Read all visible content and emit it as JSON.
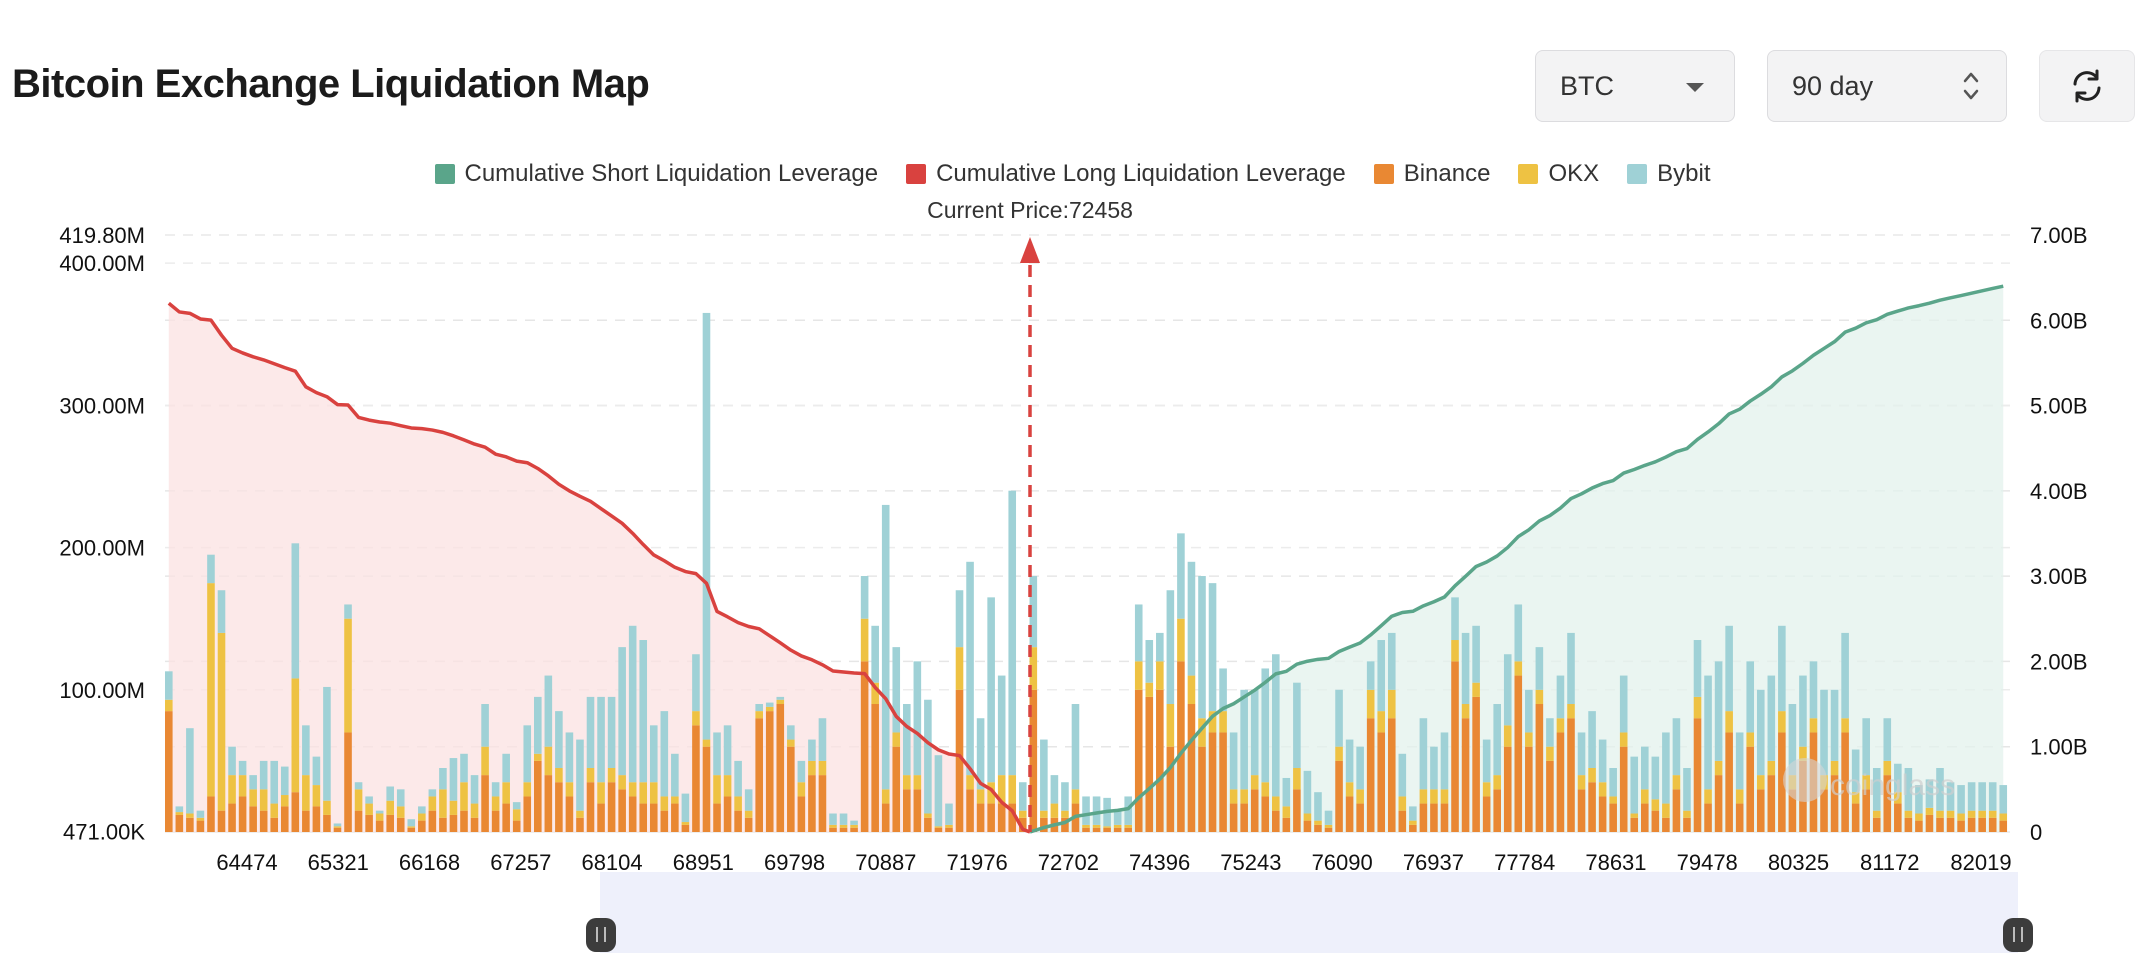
{
  "header": {
    "title": "Bitcoin Exchange Liquidation Map"
  },
  "controls": {
    "coin": {
      "value": "BTC",
      "icon": "chevron-down-icon"
    },
    "range": {
      "value": "90 day",
      "icon": "updown-icon"
    },
    "refresh": {
      "icon": "refresh-icon"
    }
  },
  "colors": {
    "short": "#5aa58a",
    "long": "#d9423f",
    "binance": "#e98833",
    "okx": "#eec243",
    "bybit": "#9fd1d6",
    "short_fill": "#e3f2ec",
    "long_fill": "#fbe2e1"
  },
  "chart_data": {
    "type": "bar",
    "title": "Bitcoin Exchange Liquidation Map",
    "current_price_label": "Current Price:72458",
    "current_price": 72458,
    "legend": [
      {
        "name": "Cumulative Short Liquidation Leverage",
        "color": "#5aa58a"
      },
      {
        "name": "Cumulative Long Liquidation Leverage",
        "color": "#d9423f"
      },
      {
        "name": "Binance",
        "color": "#e98833"
      },
      {
        "name": "OKX",
        "color": "#eec243"
      },
      {
        "name": "Bybit",
        "color": "#9fd1d6"
      }
    ],
    "x_ticks": [
      "64474",
      "65321",
      "66168",
      "67257",
      "68104",
      "68951",
      "69798",
      "70887",
      "71976",
      "72702",
      "74396",
      "75243",
      "76090",
      "76937",
      "77784",
      "78631",
      "79478",
      "80325",
      "81172",
      "82019"
    ],
    "left_axis": {
      "labels": [
        "419.80M",
        "400.00M",
        "300.00M",
        "200.00M",
        "100.00M",
        "471.00K"
      ],
      "values": [
        419.8,
        400,
        300,
        200,
        100,
        0.471
      ],
      "unit": "M",
      "range": [
        0.471,
        419.8
      ]
    },
    "right_axis": {
      "labels": [
        "7.00B",
        "6.00B",
        "5.00B",
        "4.00B",
        "3.00B",
        "2.00B",
        "1.00B",
        "0"
      ],
      "values": [
        7,
        6,
        5,
        4,
        3,
        2,
        1,
        0
      ],
      "unit": "B",
      "range": [
        0,
        7
      ]
    },
    "bars_binance": [
      85,
      12,
      10,
      8,
      25,
      15,
      20,
      25,
      18,
      15,
      10,
      18,
      28,
      15,
      18,
      12,
      3,
      70,
      15,
      12,
      8,
      12,
      10,
      3,
      8,
      15,
      10,
      12,
      15,
      10,
      40,
      15,
      20,
      8,
      25,
      50,
      40,
      35,
      25,
      10,
      35,
      20,
      35,
      30,
      25,
      20,
      20,
      15,
      20,
      5,
      75,
      60,
      20,
      25,
      15,
      10,
      80,
      85,
      90,
      60,
      25,
      40,
      40,
      3,
      3,
      3,
      120,
      90,
      20,
      60,
      30,
      30,
      10,
      3,
      3,
      100,
      30,
      20,
      20,
      20,
      20,
      10,
      100,
      10,
      10,
      10,
      20,
      3,
      3,
      3,
      3,
      3,
      100,
      95,
      100,
      60,
      120,
      90,
      60,
      70,
      70,
      20,
      20,
      30,
      25,
      15,
      10,
      30,
      8,
      5,
      3,
      50,
      25,
      20,
      80,
      70,
      80,
      15,
      5,
      20,
      20,
      20,
      120,
      80,
      95,
      25,
      30,
      60,
      110,
      60,
      90,
      50,
      70,
      80,
      30,
      35,
      25,
      20,
      60,
      10,
      20,
      15,
      10,
      30,
      10,
      80,
      20,
      40,
      70,
      20,
      60,
      30,
      40,
      70,
      30,
      50,
      70,
      30,
      40,
      70,
      20,
      30,
      10,
      40,
      20,
      10,
      8,
      12,
      10,
      10,
      8,
      10,
      10,
      10,
      8
    ],
    "bars_okx": [
      8,
      2,
      3,
      2,
      150,
      125,
      20,
      15,
      12,
      15,
      10,
      8,
      80,
      25,
      15,
      10,
      1,
      80,
      15,
      8,
      5,
      10,
      8,
      1,
      5,
      10,
      20,
      10,
      20,
      10,
      20,
      10,
      15,
      8,
      10,
      5,
      20,
      10,
      10,
      5,
      10,
      15,
      10,
      10,
      10,
      15,
      15,
      10,
      5,
      2,
      10,
      5,
      20,
      15,
      10,
      5,
      5,
      3,
      3,
      5,
      10,
      10,
      10,
      2,
      2,
      2,
      30,
      15,
      10,
      10,
      10,
      10,
      3,
      1,
      2,
      30,
      10,
      10,
      15,
      20,
      20,
      5,
      30,
      5,
      10,
      5,
      10,
      2,
      2,
      1,
      2,
      2,
      20,
      10,
      20,
      30,
      30,
      20,
      20,
      15,
      15,
      10,
      10,
      10,
      10,
      10,
      8,
      15,
      5,
      3,
      2,
      10,
      10,
      10,
      20,
      15,
      20,
      10,
      3,
      10,
      10,
      10,
      15,
      10,
      10,
      10,
      10,
      15,
      10,
      10,
      10,
      10,
      10,
      10,
      10,
      10,
      10,
      5,
      10,
      3,
      10,
      8,
      10,
      10,
      5,
      15,
      10,
      10,
      15,
      10,
      10,
      10,
      10,
      15,
      10,
      10,
      10,
      10,
      10,
      10,
      8,
      10,
      5,
      10,
      8,
      5,
      5,
      5,
      5,
      5,
      5,
      5,
      5,
      5,
      5
    ],
    "bars_bybit": [
      20,
      4,
      60,
      5,
      20,
      30,
      20,
      10,
      10,
      20,
      30,
      20,
      95,
      35,
      20,
      80,
      2,
      10,
      5,
      5,
      2,
      10,
      12,
      5,
      5,
      5,
      15,
      30,
      20,
      20,
      30,
      10,
      20,
      5,
      40,
      40,
      50,
      40,
      35,
      50,
      50,
      60,
      50,
      90,
      110,
      100,
      40,
      60,
      30,
      20,
      40,
      300,
      30,
      35,
      25,
      15,
      5,
      3,
      2,
      10,
      15,
      15,
      30,
      8,
      8,
      3,
      30,
      40,
      200,
      60,
      50,
      80,
      80,
      50,
      15,
      40,
      150,
      50,
      130,
      70,
      200,
      20,
      50,
      50,
      20,
      20,
      60,
      20,
      20,
      20,
      10,
      20,
      40,
      30,
      20,
      80,
      60,
      80,
      100,
      90,
      30,
      40,
      70,
      60,
      80,
      100,
      20,
      60,
      30,
      20,
      10,
      40,
      30,
      30,
      20,
      50,
      40,
      30,
      10,
      50,
      30,
      40,
      30,
      50,
      40,
      30,
      50,
      50,
      40,
      30,
      30,
      20,
      30,
      50,
      30,
      40,
      30,
      20,
      40,
      40,
      30,
      30,
      50,
      40,
      30,
      40,
      80,
      70,
      60,
      40,
      50,
      60,
      60,
      60,
      50,
      50,
      40,
      60,
      50,
      60,
      30,
      40,
      30,
      30,
      20,
      30,
      20,
      20,
      30,
      20,
      20,
      20,
      20,
      20,
      20
    ],
    "cumulative_long_first_bar": 6200000000,
    "cumulative_short_last_bar": 6400000000
  },
  "watermark": "coinglass"
}
